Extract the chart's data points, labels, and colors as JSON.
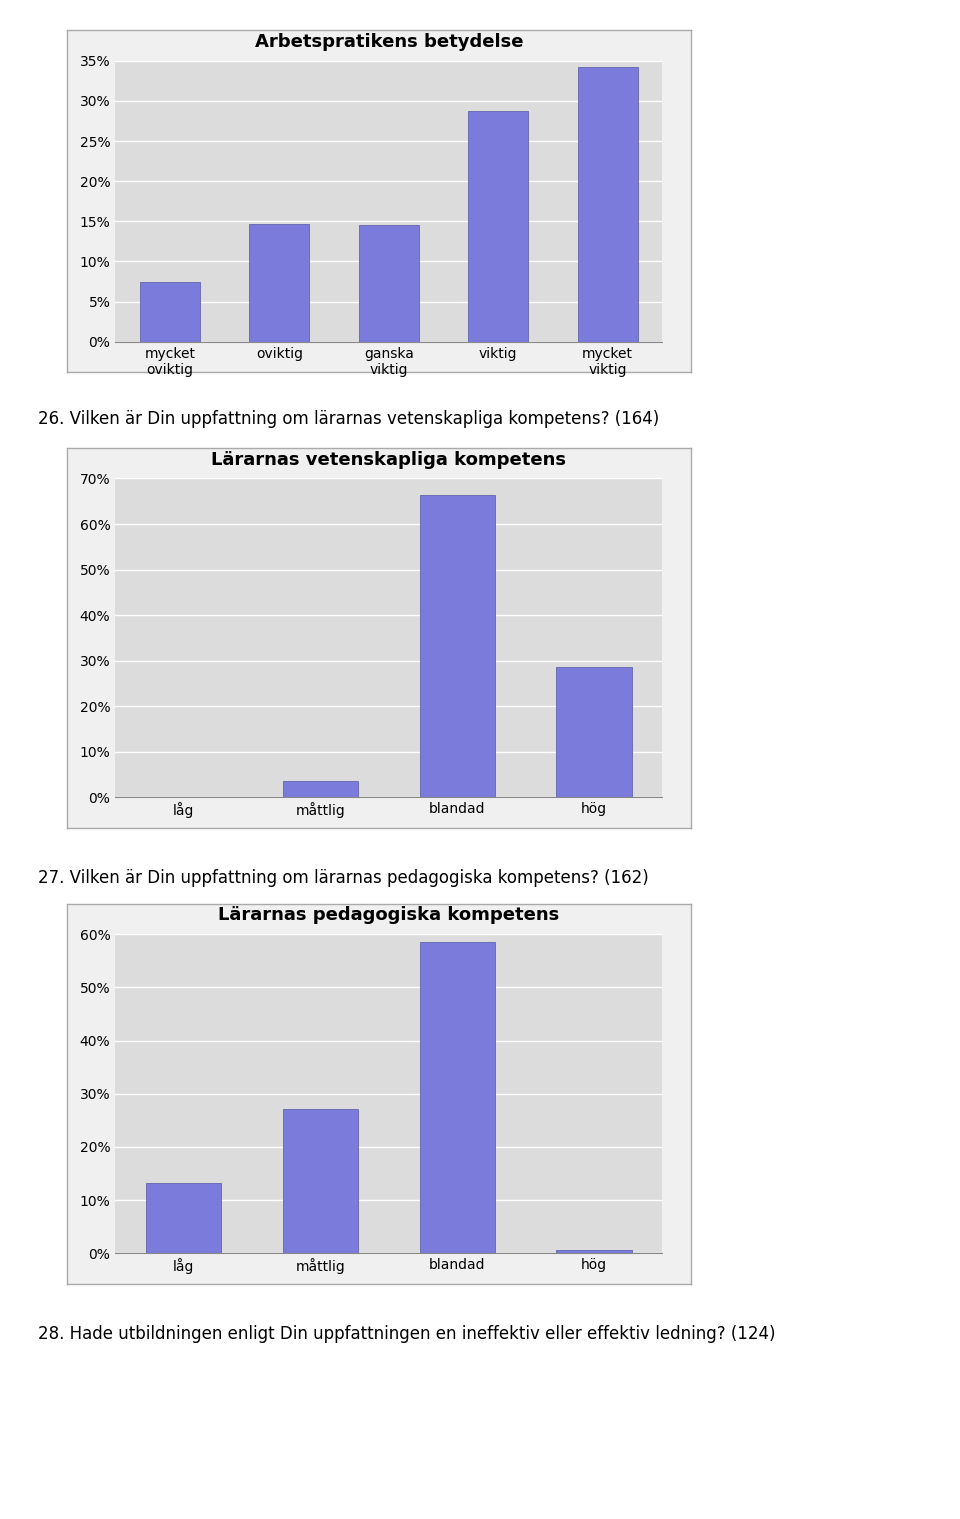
{
  "chart1": {
    "title": "Arbetspratikens betydelse",
    "categories": [
      "mycket\noviktig",
      "oviktig",
      "ganska\nviktig",
      "viktig",
      "mycket\nviktig"
    ],
    "values": [
      0.075,
      0.147,
      0.146,
      0.288,
      0.342
    ],
    "ylim": [
      0,
      0.35
    ],
    "yticks": [
      0.0,
      0.05,
      0.1,
      0.15,
      0.2,
      0.25,
      0.3,
      0.35
    ],
    "ytick_labels": [
      "0%",
      "5%",
      "10%",
      "15%",
      "20%",
      "25%",
      "30%",
      "35%"
    ]
  },
  "chart2": {
    "title": "Lärarnas vetenskapliga kompetens",
    "categories": [
      "låg",
      "måttlig",
      "blandad",
      "hög"
    ],
    "values": [
      0.0,
      0.037,
      0.664,
      0.287
    ],
    "ylim": [
      0,
      0.7
    ],
    "yticks": [
      0.0,
      0.1,
      0.2,
      0.3,
      0.4,
      0.5,
      0.6,
      0.7
    ],
    "ytick_labels": [
      "0%",
      "10%",
      "20%",
      "30%",
      "40%",
      "50%",
      "60%",
      "70%"
    ]
  },
  "chart3": {
    "title": "Lärarnas pedagogiska kompetens",
    "categories": [
      "låg",
      "måttlig",
      "blandad",
      "hög"
    ],
    "values": [
      0.132,
      0.272,
      0.585,
      0.006
    ],
    "ylim": [
      0,
      0.6
    ],
    "yticks": [
      0.0,
      0.1,
      0.2,
      0.3,
      0.4,
      0.5,
      0.6
    ],
    "ytick_labels": [
      "0%",
      "10%",
      "20%",
      "30%",
      "40%",
      "50%",
      "60%"
    ]
  },
  "bar_color": "#7b7bdb",
  "bar_edgecolor": "#5555aa",
  "plot_bg": "#dcdcdc",
  "panel_bg": "#f0f0f0",
  "panel_border": "#aaaaaa",
  "text_color": "#000000",
  "label1": "26. Vilken är Din uppfattning om lärarnas vetenskapliga kompetens? (164)",
  "label2": "27. Vilken är Din uppfattning om lärarnas pedagogiska kompetens? (162)",
  "label3": "28. Hade utbildningen enligt Din uppfattningen en ineffektiv eller effektiv ledning? (124)",
  "title_fontsize": 13,
  "label_fontsize": 12,
  "tick_fontsize": 10,
  "page_bg": "#ffffff",
  "grid_color": "#ffffff",
  "grid_linewidth": 1.0
}
